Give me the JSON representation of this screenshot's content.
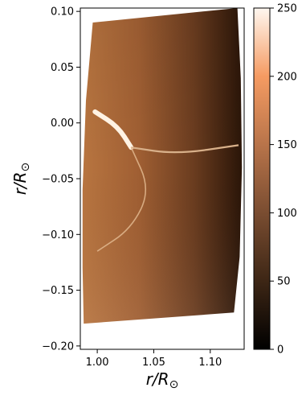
{
  "chart_data": {
    "type": "heatmap",
    "title": "",
    "xlabel": "r/R",
    "xlabel_sub": "⊙",
    "ylabel": "r/R",
    "ylabel_sub": "⊙",
    "xlim": [
      0.985,
      1.13
    ],
    "ylim": [
      -0.203,
      0.103
    ],
    "xticks": [
      1.0,
      1.05,
      1.1
    ],
    "xtick_labels": [
      "1.00",
      "1.05",
      "1.10"
    ],
    "yticks": [
      0.1,
      0.05,
      0.0,
      -0.05,
      -0.1,
      -0.15,
      -0.2
    ],
    "ytick_labels": [
      "0.10",
      "0.05",
      "0.00",
      "−0.05",
      "−0.10",
      "−0.15",
      "−0.20"
    ],
    "colorbar": {
      "colormap": "copper",
      "range": [
        0,
        250
      ],
      "ticks": [
        0,
        50,
        100,
        150,
        200,
        250
      ],
      "tick_labels": [
        "0",
        "50",
        "100",
        "150",
        "200",
        "250"
      ]
    },
    "data_region": {
      "left_edge": [
        [
          0.996,
          0.09
        ],
        [
          0.99,
          0.02
        ],
        [
          0.987,
          -0.06
        ],
        [
          0.987,
          -0.13
        ],
        [
          0.988,
          -0.18
        ]
      ],
      "right_edge": [
        [
          1.124,
          0.103
        ],
        [
          1.127,
          0.04
        ],
        [
          1.128,
          -0.04
        ],
        [
          1.126,
          -0.12
        ],
        [
          1.121,
          -0.17
        ]
      ]
    },
    "features": [
      {
        "kind": "bright_cusp",
        "points": [
          [
            0.998,
            0.01
          ],
          [
            1.018,
            -0.003
          ],
          [
            1.03,
            -0.022
          ]
        ]
      },
      {
        "kind": "shock_front",
        "points": [
          [
            1.03,
            -0.022
          ],
          [
            1.07,
            -0.028
          ],
          [
            1.125,
            -0.02
          ]
        ]
      },
      {
        "kind": "arc",
        "points": [
          [
            1.03,
            -0.022
          ],
          [
            1.047,
            -0.06
          ],
          [
            1.03,
            -0.095
          ],
          [
            1.0,
            -0.115
          ]
        ]
      }
    ]
  }
}
